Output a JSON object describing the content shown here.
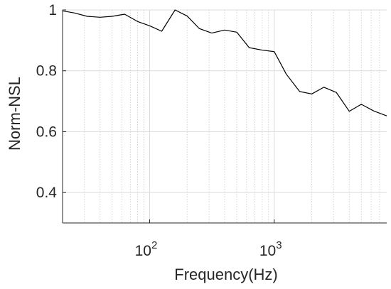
{
  "chart_data": {
    "type": "line",
    "xlabel": "Frequency(Hz)",
    "ylabel": "Norm-NSL",
    "x_scale": "log",
    "xlim": [
      20,
      8000
    ],
    "ylim": [
      0.3,
      1.0
    ],
    "x_ticks": [
      {
        "value": 100,
        "base": "10",
        "exp": "2"
      },
      {
        "value": 1000,
        "base": "10",
        "exp": "3"
      }
    ],
    "y_ticks": [
      {
        "value": 0.4,
        "label": "0.4"
      },
      {
        "value": 0.6,
        "label": "0.6"
      },
      {
        "value": 0.8,
        "label": "0.8"
      },
      {
        "value": 1.0,
        "label": "1"
      }
    ],
    "grid": true,
    "minor_grid_x": true,
    "colors": {
      "line": "#000000",
      "axis": "#262626",
      "grid_major": "#dcdcdc",
      "grid_minor": "#c8c8c8"
    },
    "series": [
      {
        "x": [
          20,
          25,
          31.5,
          40,
          50,
          63,
          80,
          100,
          125,
          160,
          200,
          250,
          315,
          400,
          500,
          630,
          800,
          1000,
          1250,
          1600,
          2000,
          2500,
          3150,
          4000,
          5000,
          6300,
          8000
        ],
        "y": [
          0.997,
          0.99,
          0.979,
          0.976,
          0.979,
          0.986,
          0.962,
          0.948,
          0.93,
          1.0,
          0.98,
          0.939,
          0.924,
          0.934,
          0.927,
          0.876,
          0.868,
          0.863,
          0.789,
          0.732,
          0.724,
          0.746,
          0.729,
          0.667,
          0.69,
          0.668,
          0.652
        ]
      }
    ]
  }
}
